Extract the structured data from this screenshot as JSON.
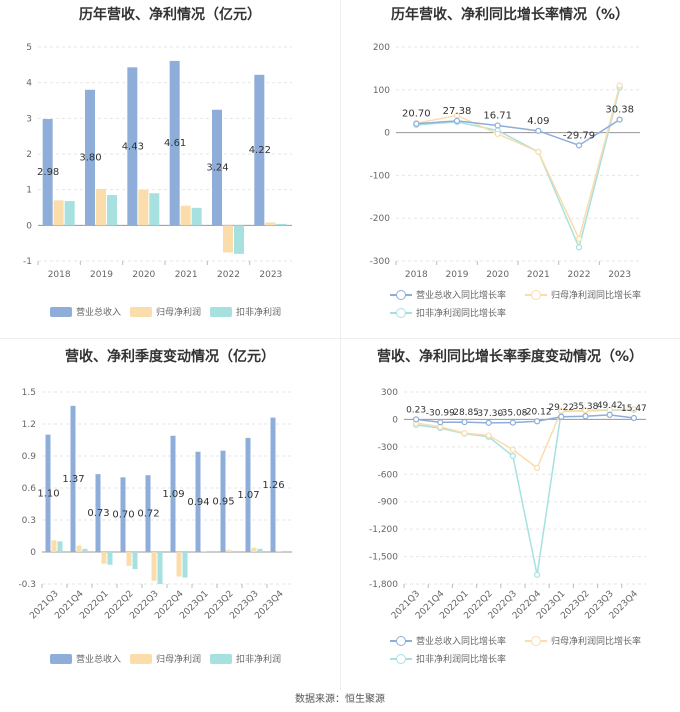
{
  "panels": {
    "p1": {
      "title": "历年营收、净利情况（亿元）"
    },
    "p2": {
      "title": "历年营收、净利同比增长率情况（%）"
    },
    "p3": {
      "title": "营收、净利季度变动情况（亿元）"
    },
    "p4": {
      "title": "营收、净利同比增长率季度变动情况（%）"
    }
  },
  "footer": "数据来源：恒生聚源",
  "colors": {
    "revenue": "#8eadd9",
    "netprofit": "#fbdcab",
    "deducted": "#a6e1e0"
  },
  "chart_data": [
    {
      "type": "bar",
      "title": "历年营收、净利情况（亿元）",
      "categories": [
        "2018",
        "2019",
        "2020",
        "2021",
        "2022",
        "2023"
      ],
      "ylim": [
        -1,
        5
      ],
      "yticks": [
        -1,
        0,
        1,
        2,
        3,
        4,
        5
      ],
      "series": [
        {
          "name": "营业总收入",
          "values": [
            2.98,
            3.8,
            4.43,
            4.61,
            3.24,
            4.22
          ],
          "labels": [
            "2.98",
            "3.80",
            "4.43",
            "4.61",
            "3.24",
            "4.22"
          ]
        },
        {
          "name": "归母净利润",
          "values": [
            0.7,
            1.02,
            1.0,
            0.55,
            -0.76,
            0.08
          ]
        },
        {
          "name": "扣非净利润",
          "values": [
            0.68,
            0.85,
            0.9,
            0.49,
            -0.8,
            0.04
          ]
        }
      ],
      "legend_position": "bottom"
    },
    {
      "type": "line",
      "title": "历年营收、净利同比增长率情况（%）",
      "categories": [
        "2018",
        "2019",
        "2020",
        "2021",
        "2022",
        "2023"
      ],
      "ylim": [
        -300,
        200
      ],
      "yticks": [
        -300,
        -200,
        -100,
        0,
        100,
        200
      ],
      "series": [
        {
          "name": "营业总收入同比增长率",
          "values": [
            20.7,
            27.38,
            16.71,
            4.09,
            -29.79,
            30.38
          ],
          "labels": [
            "20.70",
            "27.38",
            "16.71",
            "4.09",
            "-29.79",
            "30.38"
          ]
        },
        {
          "name": "归母净利润同比增长率",
          "values": [
            22,
            40,
            -3,
            -45,
            -248,
            110
          ]
        },
        {
          "name": "扣非净利润同比增长率",
          "values": [
            18,
            25,
            5,
            -45,
            -268,
            105
          ]
        }
      ],
      "legend_position": "bottom"
    },
    {
      "type": "bar",
      "title": "营收、净利季度变动情况（亿元）",
      "categories": [
        "2021Q3",
        "2021Q4",
        "2022Q1",
        "2022Q2",
        "2022Q3",
        "2022Q4",
        "2023Q1",
        "2023Q2",
        "2023Q3",
        "2023Q4"
      ],
      "ylim": [
        -0.3,
        1.5
      ],
      "yticks": [
        -0.3,
        0,
        0.3,
        0.6,
        0.9,
        1.2,
        1.5
      ],
      "series": [
        {
          "name": "营业总收入",
          "values": [
            1.1,
            1.37,
            0.73,
            0.7,
            0.72,
            1.09,
            0.94,
            0.95,
            1.07,
            1.26
          ],
          "labels": [
            "1.10",
            "1.37",
            "0.73",
            "0.70",
            "0.72",
            "1.09",
            "0.94",
            "0.95",
            "1.07",
            "1.26"
          ]
        },
        {
          "name": "归母净利润",
          "values": [
            0.11,
            0.06,
            -0.11,
            -0.13,
            -0.27,
            -0.23,
            0.01,
            0.02,
            0.04,
            0.01
          ]
        },
        {
          "name": "扣非净利润",
          "values": [
            0.1,
            0.03,
            -0.12,
            -0.16,
            -0.3,
            -0.24,
            0.01,
            0.01,
            0.03,
            0.01
          ]
        }
      ],
      "legend_position": "bottom"
    },
    {
      "type": "line",
      "title": "营收、净利同比增长率季度变动情况（%）",
      "categories": [
        "2021Q3",
        "2021Q4",
        "2022Q1",
        "2022Q2",
        "2022Q3",
        "2022Q4",
        "2023Q1",
        "2023Q2",
        "2023Q3",
        "2023Q4"
      ],
      "ylim": [
        -1800,
        300
      ],
      "yticks": [
        -1800,
        -1500,
        -1200,
        -900,
        -600,
        -300,
        0,
        300
      ],
      "series": [
        {
          "name": "营业总收入同比增长率",
          "values": [
            0.23,
            -30.99,
            -28.85,
            -37.3,
            -35.08,
            -20.12,
            29.22,
            35.38,
            49.42,
            15.47
          ],
          "labels": [
            "0.23",
            "-30.99",
            "-28.85",
            "-37.30",
            "-35.08",
            "-20.12",
            "29.22",
            "35.38",
            "49.42",
            "15.47"
          ]
        },
        {
          "name": "归母净利润同比增长率",
          "values": [
            -40,
            -80,
            -150,
            -175,
            -330,
            -530,
            95,
            100,
            105,
            110
          ]
        },
        {
          "name": "扣非净利润同比增长率",
          "values": [
            -60,
            -95,
            -155,
            -190,
            -400,
            -1700,
            90,
            95,
            100,
            105
          ]
        }
      ],
      "legend_position": "bottom"
    }
  ]
}
